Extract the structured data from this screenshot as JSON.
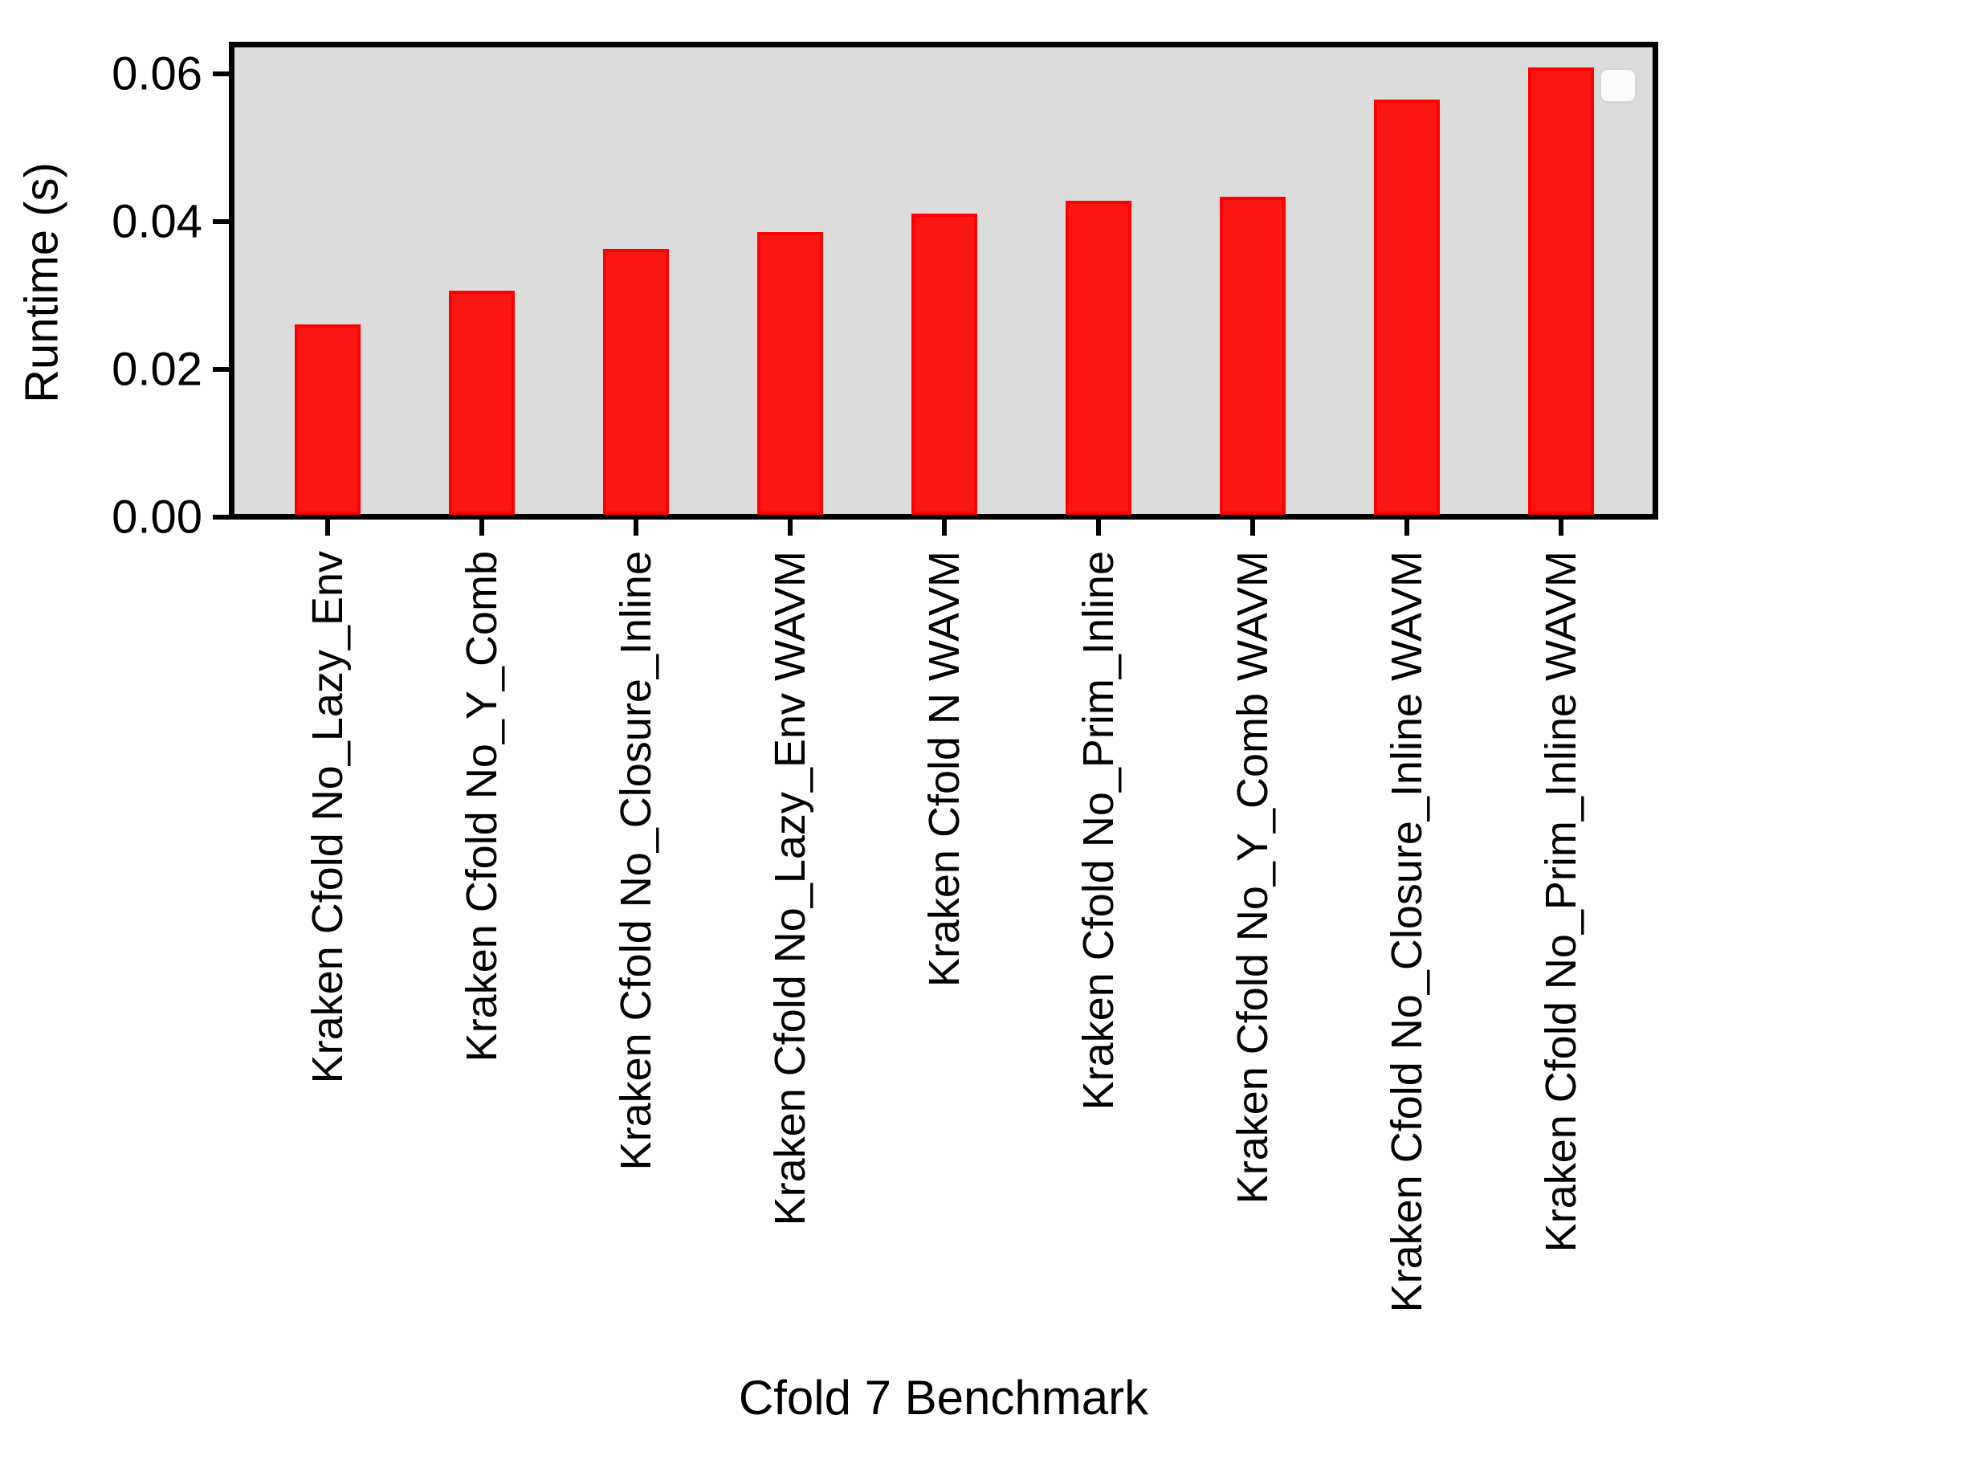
{
  "figure": {
    "background": "#ffffff",
    "plot_background": "#dcdcdc",
    "axis_border_color": "#000000",
    "tick_color": "#000000"
  },
  "chart_data": {
    "type": "bar",
    "title": "",
    "xlabel": "Cfold 7 Benchmark",
    "ylabel": "Runtime (s)",
    "categories": [
      "Kraken Cfold No_Lazy_Env",
      "Kraken Cfold No_Y_Comb",
      "Kraken Cfold No_Closure_Inline",
      "Kraken Cfold No_Lazy_Env WAVM",
      "Kraken Cfold N WAVM",
      "Kraken Cfold No_Prim_Inline",
      "Kraken Cfold No_Y_Comb WAVM",
      "Kraken Cfold No_Closure_Inline WAVM",
      "Kraken Cfold No_Prim_Inline WAVM"
    ],
    "values": [
      0.0261,
      0.0307,
      0.0363,
      0.0386,
      0.0411,
      0.0428,
      0.0434,
      0.0565,
      0.0609
    ],
    "bar_color": "#fa1612",
    "bar_edge_color": "#ff0000",
    "ylim": [
      0,
      0.0636
    ],
    "yticks": {
      "values": [
        0,
        0.02,
        0.04,
        0.06
      ],
      "labels": [
        "0.00",
        "0.02",
        "0.04",
        "0.06"
      ]
    },
    "grid": false,
    "legend": {
      "visible": true,
      "entries": [],
      "position": "upper right"
    }
  }
}
